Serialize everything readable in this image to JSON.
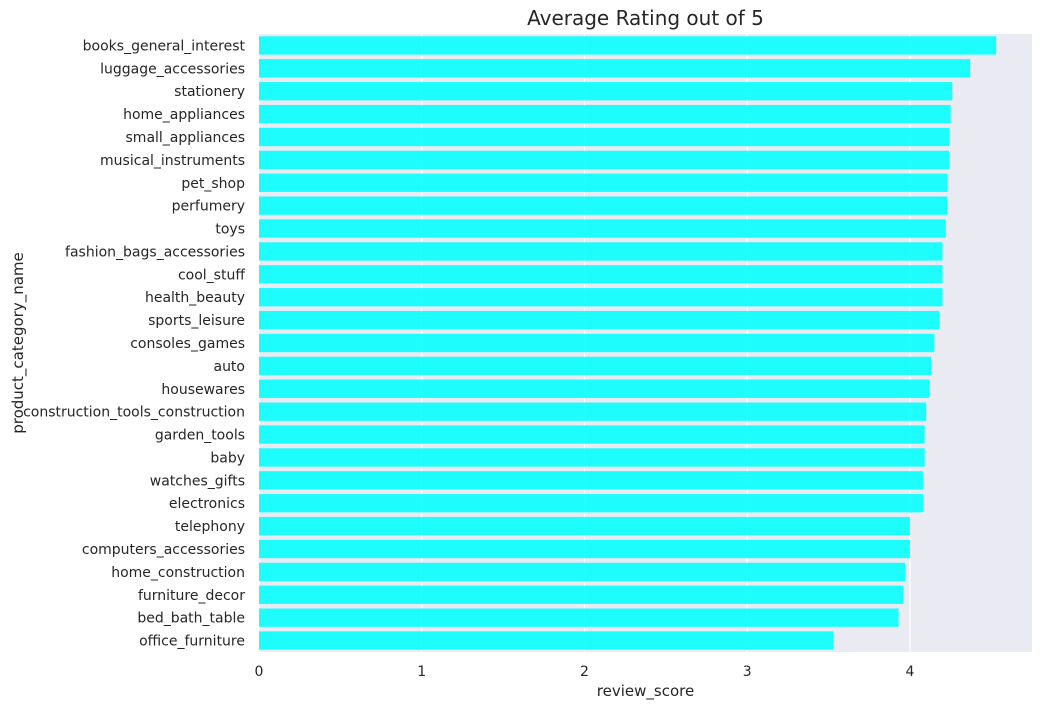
{
  "chart_data": {
    "type": "bar",
    "orientation": "horizontal",
    "title": "Average Rating out of 5",
    "xlabel": "review_score",
    "ylabel": "product_category_name",
    "xlim": [
      0,
      4.75
    ],
    "xticks": [
      0,
      1,
      2,
      3,
      4
    ],
    "grid": true,
    "bar_color": "#00ffff",
    "background_color": "#eaeaf2",
    "categories": [
      "books_general_interest",
      "luggage_accessories",
      "stationery",
      "home_appliances",
      "small_appliances",
      "musical_instruments",
      "pet_shop",
      "perfumery",
      "toys",
      "fashion_bags_accessories",
      "cool_stuff",
      "health_beauty",
      "sports_leisure",
      "consoles_games",
      "auto",
      "housewares",
      "construction_tools_construction",
      "garden_tools",
      "baby",
      "watches_gifts",
      "electronics",
      "telephony",
      "computers_accessories",
      "home_construction",
      "furniture_decor",
      "bed_bath_table",
      "office_furniture"
    ],
    "values": [
      4.53,
      4.37,
      4.26,
      4.25,
      4.24,
      4.24,
      4.23,
      4.23,
      4.22,
      4.2,
      4.2,
      4.2,
      4.18,
      4.15,
      4.13,
      4.12,
      4.1,
      4.09,
      4.09,
      4.08,
      4.08,
      4.0,
      4.0,
      3.97,
      3.96,
      3.93,
      3.53
    ]
  }
}
